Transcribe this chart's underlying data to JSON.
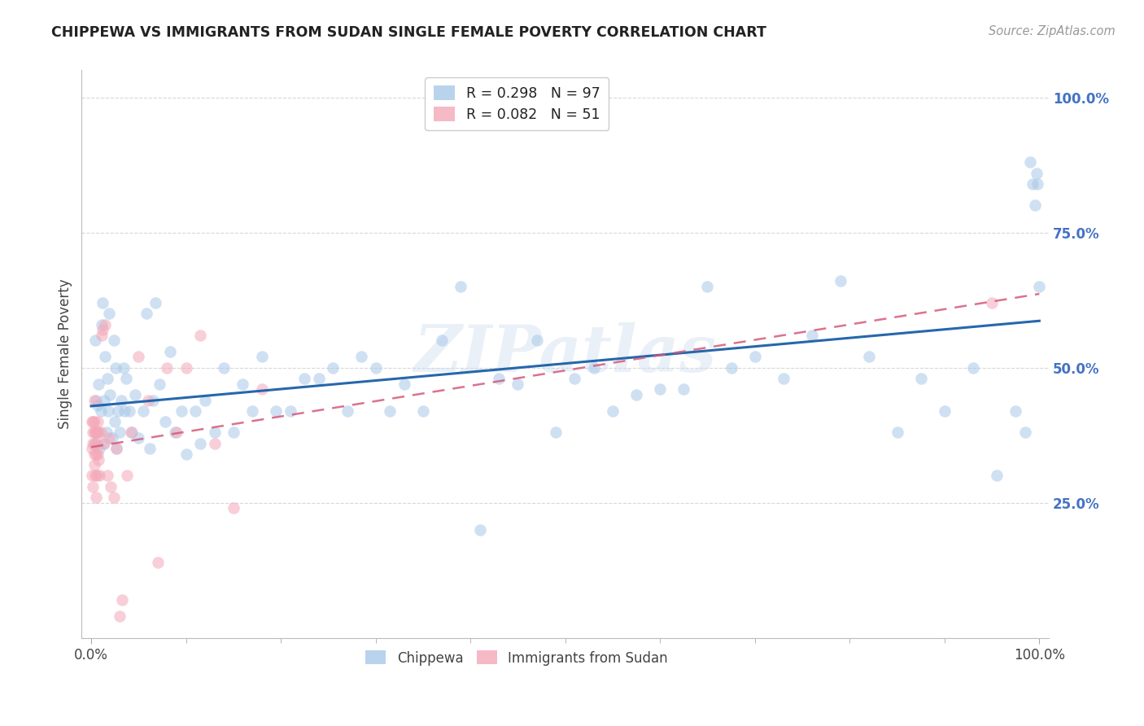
{
  "title": "CHIPPEWA VS IMMIGRANTS FROM SUDAN SINGLE FEMALE POVERTY CORRELATION CHART",
  "source": "Source: ZipAtlas.com",
  "ylabel": "Single Female Poverty",
  "legend_label1": "Chippewa",
  "legend_label2": "Immigrants from Sudan",
  "R1": 0.298,
  "N1": 97,
  "R2": 0.082,
  "N2": 51,
  "color1": "#a8c8e8",
  "color2": "#f4a8b8",
  "trendline1_color": "#1a5fa8",
  "trendline2_color": "#d45a78",
  "background_color": "#ffffff",
  "grid_color": "#d8d8d8",
  "chippewa_x": [
    0.003,
    0.004,
    0.005,
    0.006,
    0.007,
    0.008,
    0.009,
    0.01,
    0.011,
    0.012,
    0.013,
    0.014,
    0.015,
    0.016,
    0.017,
    0.018,
    0.019,
    0.02,
    0.022,
    0.024,
    0.025,
    0.026,
    0.027,
    0.028,
    0.03,
    0.032,
    0.034,
    0.035,
    0.037,
    0.04,
    0.043,
    0.046,
    0.05,
    0.055,
    0.058,
    0.062,
    0.065,
    0.068,
    0.072,
    0.078,
    0.083,
    0.088,
    0.095,
    0.1,
    0.11,
    0.115,
    0.12,
    0.13,
    0.14,
    0.15,
    0.16,
    0.17,
    0.18,
    0.195,
    0.21,
    0.225,
    0.24,
    0.255,
    0.27,
    0.285,
    0.3,
    0.315,
    0.33,
    0.35,
    0.37,
    0.39,
    0.41,
    0.43,
    0.45,
    0.47,
    0.49,
    0.51,
    0.53,
    0.55,
    0.575,
    0.6,
    0.625,
    0.65,
    0.675,
    0.7,
    0.73,
    0.76,
    0.79,
    0.82,
    0.85,
    0.875,
    0.9,
    0.93,
    0.955,
    0.975,
    0.985,
    0.99,
    0.993,
    0.995,
    0.997,
    0.998,
    1.0
  ],
  "chippewa_y": [
    0.36,
    0.55,
    0.44,
    0.38,
    0.43,
    0.47,
    0.35,
    0.42,
    0.58,
    0.62,
    0.36,
    0.44,
    0.52,
    0.38,
    0.48,
    0.42,
    0.6,
    0.45,
    0.37,
    0.55,
    0.4,
    0.5,
    0.35,
    0.42,
    0.38,
    0.44,
    0.5,
    0.42,
    0.48,
    0.42,
    0.38,
    0.45,
    0.37,
    0.42,
    0.6,
    0.35,
    0.44,
    0.62,
    0.47,
    0.4,
    0.53,
    0.38,
    0.42,
    0.34,
    0.42,
    0.36,
    0.44,
    0.38,
    0.5,
    0.38,
    0.47,
    0.42,
    0.52,
    0.42,
    0.42,
    0.48,
    0.48,
    0.5,
    0.42,
    0.52,
    0.5,
    0.42,
    0.47,
    0.42,
    0.55,
    0.65,
    0.2,
    0.48,
    0.47,
    0.55,
    0.38,
    0.48,
    0.5,
    0.42,
    0.45,
    0.46,
    0.46,
    0.65,
    0.5,
    0.52,
    0.48,
    0.56,
    0.66,
    0.52,
    0.38,
    0.48,
    0.42,
    0.5,
    0.3,
    0.42,
    0.38,
    0.88,
    0.84,
    0.8,
    0.86,
    0.84,
    0.65
  ],
  "sudan_x": [
    0.001,
    0.001,
    0.001,
    0.002,
    0.002,
    0.002,
    0.002,
    0.003,
    0.003,
    0.003,
    0.003,
    0.003,
    0.004,
    0.004,
    0.004,
    0.005,
    0.005,
    0.005,
    0.006,
    0.006,
    0.006,
    0.007,
    0.007,
    0.008,
    0.008,
    0.009,
    0.01,
    0.011,
    0.012,
    0.014,
    0.015,
    0.017,
    0.019,
    0.021,
    0.024,
    0.027,
    0.03,
    0.033,
    0.038,
    0.042,
    0.05,
    0.06,
    0.07,
    0.08,
    0.09,
    0.1,
    0.115,
    0.13,
    0.15,
    0.18,
    0.95
  ],
  "sudan_y": [
    0.35,
    0.4,
    0.3,
    0.28,
    0.36,
    0.4,
    0.38,
    0.32,
    0.38,
    0.34,
    0.4,
    0.44,
    0.3,
    0.36,
    0.38,
    0.26,
    0.34,
    0.38,
    0.3,
    0.36,
    0.38,
    0.34,
    0.4,
    0.33,
    0.38,
    0.3,
    0.38,
    0.56,
    0.57,
    0.36,
    0.58,
    0.3,
    0.37,
    0.28,
    0.26,
    0.35,
    0.04,
    0.07,
    0.3,
    0.38,
    0.52,
    0.44,
    0.14,
    0.5,
    0.38,
    0.5,
    0.56,
    0.36,
    0.24,
    0.46,
    0.62
  ],
  "xlim": [
    -0.01,
    1.01
  ],
  "ylim": [
    0.0,
    1.05
  ],
  "ytick_positions": [
    0.25,
    0.5,
    0.75,
    1.0
  ],
  "ytick_labels": [
    "25.0%",
    "50.0%",
    "75.0%",
    "100.0%"
  ],
  "xtick_positions": [
    0.0,
    1.0
  ],
  "xtick_labels": [
    "0.0%",
    "100.0%"
  ],
  "watermark": "ZIPatlas",
  "marker_size": 110,
  "marker_alpha": 0.55
}
